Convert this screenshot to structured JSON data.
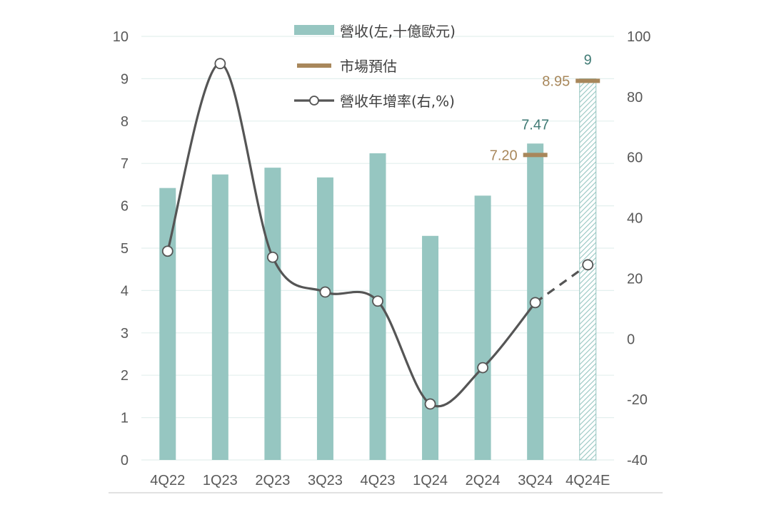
{
  "chart_data": {
    "type": "bar+line",
    "categories": [
      "4Q22",
      "1Q23",
      "2Q23",
      "3Q23",
      "4Q23",
      "1Q24",
      "2Q24",
      "3Q24",
      "4Q24E"
    ],
    "left_axis": {
      "ylim": [
        0,
        10
      ],
      "ticks": [
        "0",
        "1",
        "2",
        "3",
        "4",
        "5",
        "6",
        "7",
        "8",
        "9",
        "10"
      ]
    },
    "right_axis": {
      "ylim": [
        -40,
        100
      ],
      "ticks": [
        "-40",
        "-20",
        "0",
        "20",
        "40",
        "60",
        "80",
        "100"
      ]
    },
    "series": [
      {
        "name": "營收(左,十億歐元)",
        "kind": "bar",
        "axis": "left",
        "color": "#96c6c1",
        "values": [
          6.42,
          6.74,
          6.9,
          6.67,
          7.24,
          5.29,
          6.24,
          7.47,
          9.0
        ],
        "estimate_index": 8,
        "labels": {
          "7": "7.47",
          "8": "9"
        }
      },
      {
        "name": "市場預估",
        "kind": "marker",
        "axis": "left",
        "color": "#a8875b",
        "points": [
          {
            "category": "3Q24",
            "value": 7.2,
            "label": "7.20"
          },
          {
            "category": "4Q24E",
            "value": 8.95,
            "label": "8.95"
          }
        ]
      },
      {
        "name": "營收年增率(右,%)",
        "kind": "line",
        "axis": "right",
        "color": "#555555",
        "values": [
          29,
          91,
          27,
          15.5,
          12.5,
          -21.5,
          -9.5,
          12,
          24.5
        ],
        "dashed_from_index": 7
      }
    ],
    "grid": true,
    "legend_position": "top-center"
  }
}
